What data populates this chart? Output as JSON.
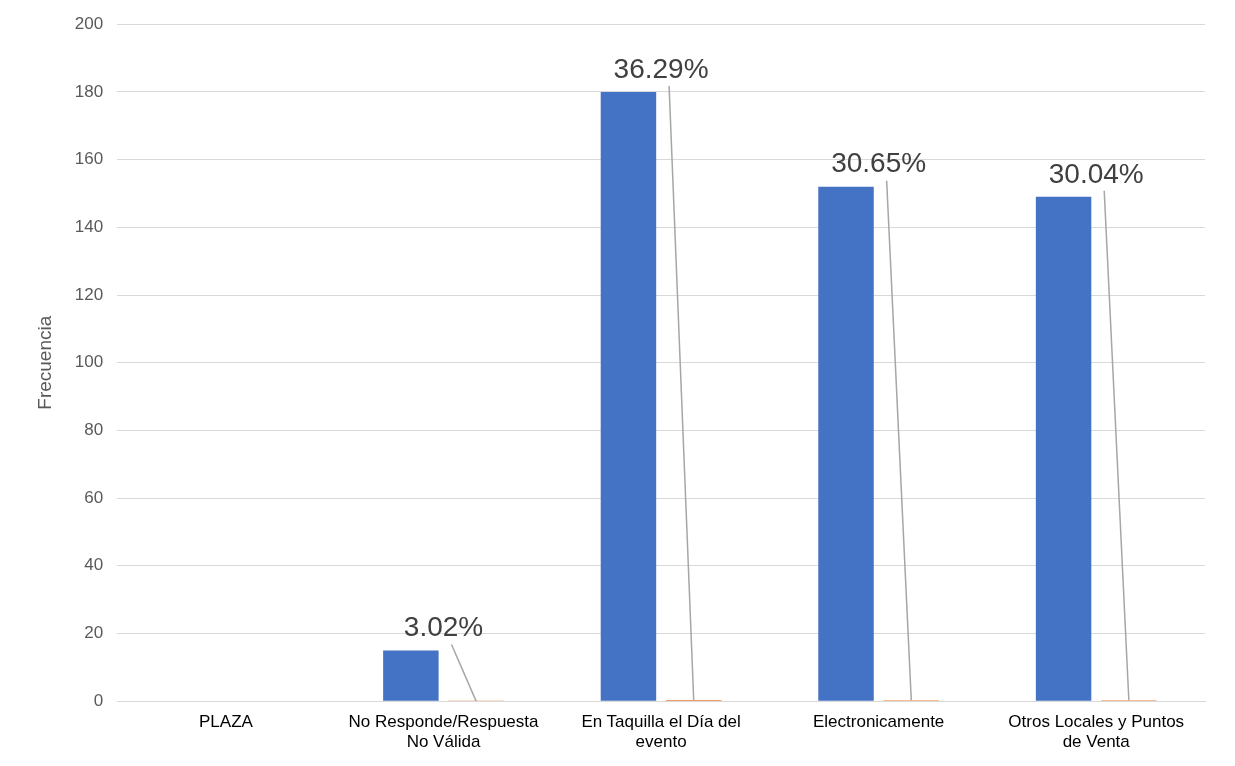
{
  "chart_data": {
    "type": "bar",
    "ylabel": "Frecuencia",
    "categories": [
      "PLAZA",
      "No Responde/Respuesta No Válida",
      "En Taquilla el Día del evento",
      "Electronicamente",
      "Otros Locales y Puntos de Venta"
    ],
    "series": [
      {
        "color": "#4472c4",
        "values": [
          null,
          15,
          180,
          152,
          149
        ]
      },
      {
        "color": "#ed7d31",
        "values": [
          null,
          0.0302,
          0.3629,
          0.3065,
          0.3004
        ],
        "value_labels": [
          null,
          "3.02%",
          "36.29%",
          "30.65%",
          "30.04%"
        ]
      }
    ],
    "ylim": [
      0,
      200
    ],
    "yticks": [
      0,
      20,
      40,
      60,
      80,
      100,
      120,
      140,
      160,
      180,
      200
    ],
    "grid": "y",
    "legend": false
  }
}
